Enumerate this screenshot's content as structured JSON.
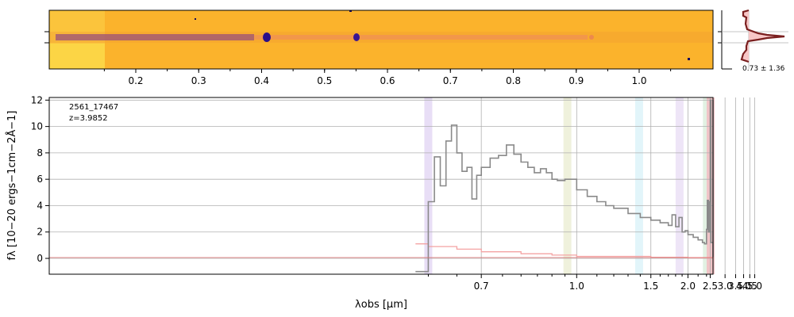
{
  "object_id": "2561_17467",
  "redshift_label": "z=3.9852",
  "profile_stat": "0.73 ± 1.36",
  "colors": {
    "spectrum": "#8a8a8a",
    "error": "#f4a3a3",
    "profile_line": "#7a1f1f",
    "profile_fill": "#f7c6c6",
    "image_bg": "#fbb32c",
    "image_trace": "#5b23a8"
  },
  "chart_data": [
    {
      "type": "image",
      "description_ticks": [
        "0.2",
        "0.3",
        "0.4",
        "0.5",
        "0.6",
        "0.7",
        "0.8",
        "0.9",
        "1.0"
      ],
      "tick_values": [
        0.2,
        0.3,
        0.4,
        0.5,
        0.6,
        0.7,
        0.8,
        0.9,
        1.0
      ],
      "colormap": "plasma"
    },
    {
      "type": "line",
      "title": "",
      "xlabel": "λobs [μm]",
      "ylabel": "fλ [10−20 ergs−1cm−2Å−1]",
      "xscale": "spectral-reciprocal",
      "xticks": [
        "0.7",
        "1.0",
        "1.5",
        "2.0",
        "2.5",
        "3.0",
        "3.5",
        "4.0",
        "4.5",
        "5.0"
      ],
      "xtick_values": [
        0.7,
        1.0,
        1.5,
        2.0,
        2.5,
        3.0,
        3.5,
        4.0,
        4.5,
        5.0
      ],
      "yticks": [
        "0",
        "2",
        "4",
        "6",
        "8",
        "10",
        "12"
      ],
      "ylim": [
        -1.2,
        12.2
      ],
      "grid": true,
      "series": [
        {
          "x": [
            0.58,
            0.6,
            0.61,
            0.62,
            0.63,
            0.64,
            0.65,
            0.66,
            0.67,
            0.68,
            0.69,
            0.7,
            0.72,
            0.74,
            0.76,
            0.78,
            0.8,
            0.82,
            0.84,
            0.86,
            0.88,
            0.9,
            0.92,
            0.95,
            1.0,
            1.05,
            1.1,
            1.15,
            1.2,
            1.3,
            1.4,
            1.5,
            1.6,
            1.7,
            1.75,
            1.8,
            1.85,
            1.9,
            1.95,
            2.0,
            2.1,
            2.2,
            2.3,
            2.35,
            2.4,
            2.42,
            2.45,
            2.48,
            2.5,
            2.52,
            2.6,
            2.7,
            2.8,
            2.9,
            3.0,
            3.1,
            3.2,
            3.24,
            3.26,
            3.28,
            3.32,
            3.4,
            3.5,
            3.7,
            3.9,
            4.2,
            4.5,
            4.52,
            4.6,
            4.72,
            4.75,
            4.8,
            5.0,
            5.3,
            5.4
          ],
          "y": [
            -1.0,
            4.3,
            7.7,
            5.5,
            8.9,
            10.1,
            8.0,
            6.6,
            6.9,
            4.5,
            6.3,
            6.9,
            7.6,
            7.8,
            8.6,
            7.9,
            7.3,
            6.9,
            6.5,
            6.8,
            6.5,
            6.0,
            5.9,
            6.0,
            5.2,
            4.7,
            4.3,
            4.0,
            3.8,
            3.4,
            3.1,
            2.9,
            2.7,
            2.5,
            3.3,
            2.4,
            3.1,
            2.0,
            2.1,
            1.8,
            1.6,
            1.4,
            1.2,
            1.1,
            2.2,
            4.4,
            2.0,
            4.3,
            12.0,
            1.2,
            0.9,
            0.8,
            0.7,
            0.7,
            0.7,
            0.6,
            0.6,
            12.0,
            8.0,
            0.6,
            0.5,
            0.5,
            0.5,
            0.4,
            0.4,
            0.3,
            0.3,
            0.5,
            0.3,
            0.3,
            1.3,
            0.3,
            0.2,
            0.2,
            0.1
          ]
        },
        {
          "x": [
            0.58,
            0.6,
            0.65,
            0.7,
            0.8,
            0.9,
            1.0,
            1.5,
            2.0,
            3.0,
            4.0,
            5.0,
            5.4
          ],
          "y": [
            1.1,
            0.9,
            0.7,
            0.5,
            0.35,
            0.25,
            0.15,
            0.08,
            0.05,
            0.04,
            0.03,
            0.03,
            0.03
          ]
        }
      ],
      "shaded_lines": [
        {
          "x": 0.6,
          "color": "#d9c8f0"
        },
        {
          "x": 0.96,
          "color": "#e5e8c5"
        },
        {
          "x": 1.39,
          "color": "#cfeff7"
        },
        {
          "x": 1.86,
          "color": "#e2d4f2"
        },
        {
          "x": 2.41,
          "color": "#cfe8d0"
        },
        {
          "x": 3.26,
          "color": "#d4ecd6"
        },
        {
          "x": 4.51,
          "color": "#ecd3d3"
        },
        {
          "x": 4.75,
          "color": "#f0d6d6"
        },
        {
          "x": 5.4,
          "color": "#f3b6bd"
        }
      ]
    },
    {
      "type": "area",
      "annotation": "0.73 ± 1.36"
    }
  ]
}
